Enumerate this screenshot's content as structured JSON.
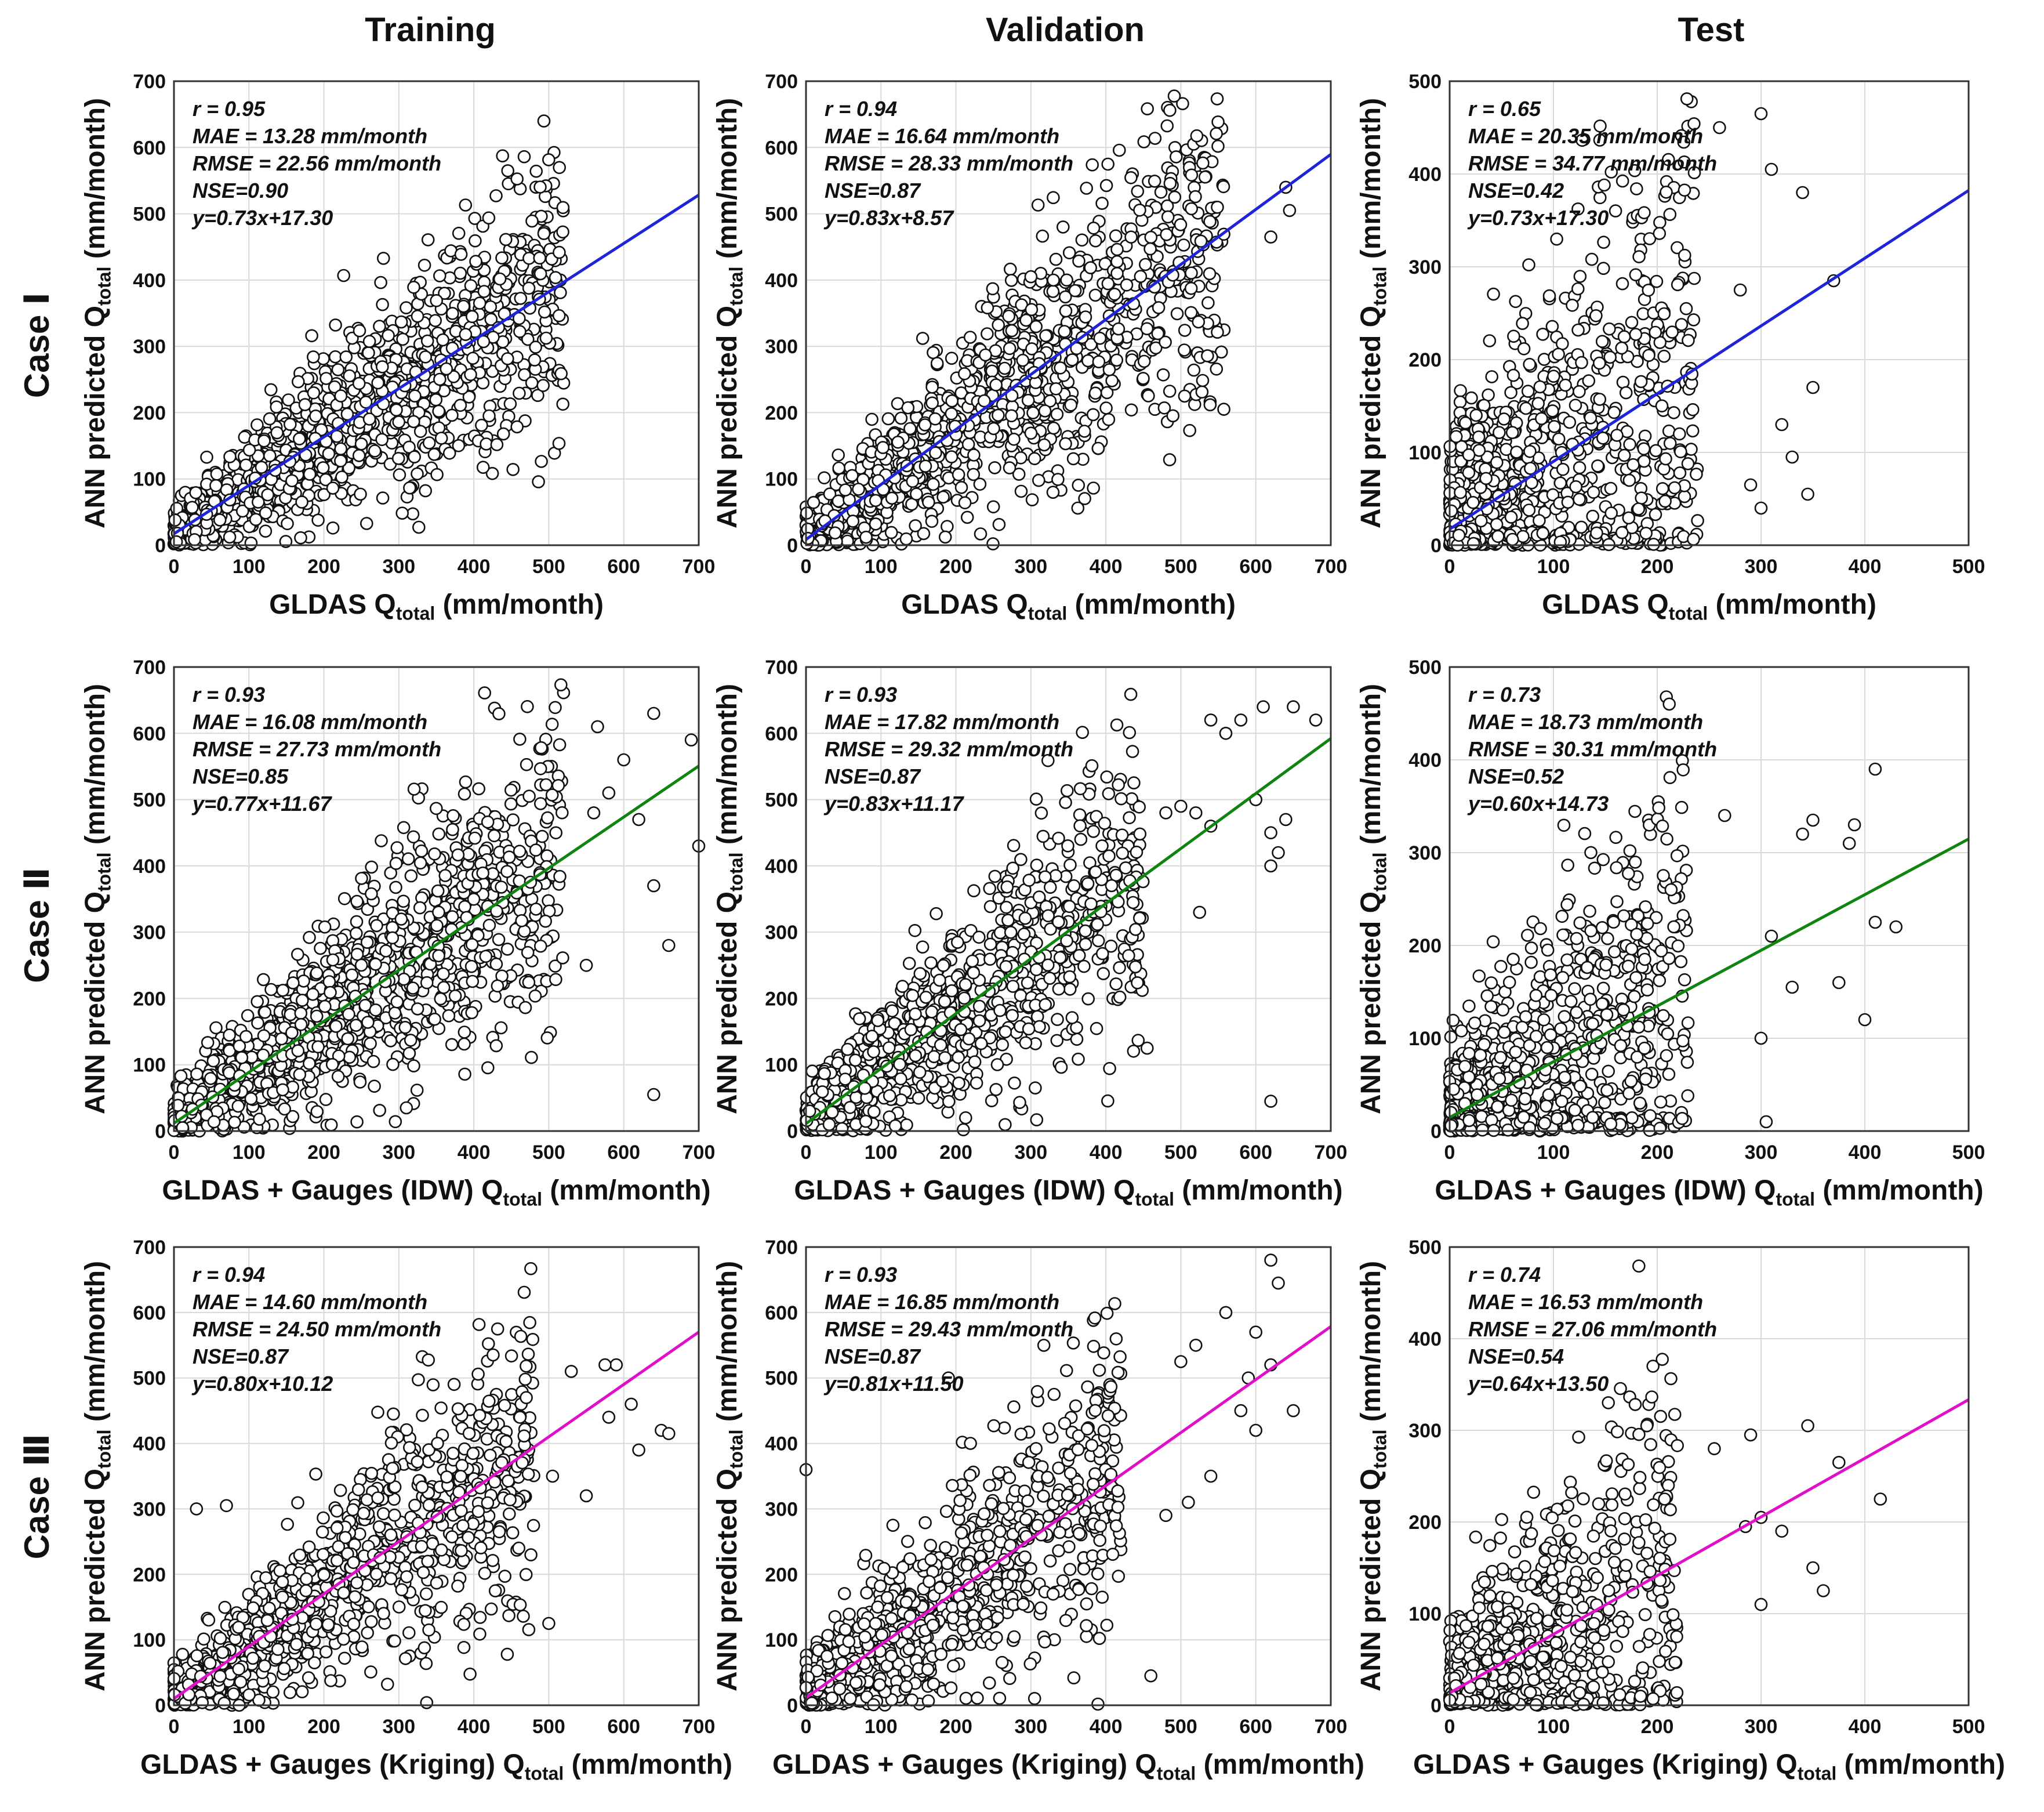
{
  "column_titles": [
    "Training",
    "Validation",
    "Test"
  ],
  "row_titles": [
    "Case Ⅰ",
    "Case Ⅱ",
    "Case Ⅲ"
  ],
  "axis_text": {
    "y_label_main": "ANN predicted Q",
    "sub": "total",
    "unit": " (mm/month)",
    "x_labels_main": [
      "GLDAS Q",
      "GLDAS + Gauges (IDW) Q",
      "GLDAS + Gauges (Kriging) Q"
    ]
  },
  "colors": {
    "case1": "#1f24d8",
    "case2": "#108410",
    "case3": "#e010c8",
    "marker_edge": "#111111",
    "grid": "#d9d9d9"
  },
  "chart_data": [
    {
      "type": "scatter",
      "case": "Case Ⅰ",
      "set": "Training",
      "xlim": [
        0,
        700
      ],
      "ylim": [
        0,
        700
      ],
      "xticks": [
        0,
        100,
        200,
        300,
        400,
        500,
        600,
        700
      ],
      "yticks": [
        0,
        100,
        200,
        300,
        400,
        500,
        600,
        700
      ],
      "grid": true,
      "stats": [
        "r = 0.95",
        "MAE = 13.28 mm/month",
        "RMSE = 22.56 mm/month",
        "NSE=0.90",
        "y=0.73x+17.30"
      ],
      "fit": {
        "slope": 0.73,
        "intercept": 17.3
      },
      "cloud": {
        "n": 1400,
        "xmax": 520,
        "spread": 0.18,
        "noise": 20,
        "skew": 1.25,
        "outliers": []
      }
    },
    {
      "type": "scatter",
      "case": "Case Ⅰ",
      "set": "Validation",
      "xlim": [
        0,
        700
      ],
      "ylim": [
        0,
        700
      ],
      "xticks": [
        0,
        100,
        200,
        300,
        400,
        500,
        600,
        700
      ],
      "yticks": [
        0,
        100,
        200,
        300,
        400,
        500,
        600,
        700
      ],
      "grid": true,
      "stats": [
        "r = 0.94",
        "MAE = 16.64 mm/month",
        "RMSE = 28.33 mm/month",
        "NSE=0.87",
        "y=0.83x+8.57"
      ],
      "fit": {
        "slope": 0.83,
        "intercept": 8.57
      },
      "cloud": {
        "n": 1200,
        "xmax": 560,
        "spread": 0.2,
        "noise": 25,
        "skew": 1.2,
        "outliers": [
          [
            640,
            540
          ],
          [
            645,
            505
          ],
          [
            620,
            465
          ],
          [
            505,
            225
          ],
          [
            415,
            410
          ],
          [
            330,
            400
          ],
          [
            300,
            405
          ]
        ]
      }
    },
    {
      "type": "scatter",
      "case": "Case Ⅰ",
      "set": "Test",
      "xlim": [
        0,
        500
      ],
      "ylim": [
        0,
        500
      ],
      "xticks": [
        0,
        100,
        200,
        300,
        400,
        500
      ],
      "yticks": [
        0,
        100,
        200,
        300,
        400,
        500
      ],
      "grid": true,
      "stats": [
        "r = 0.65",
        "MAE = 20.35 mm/month",
        "RMSE = 34.77 mm/month",
        "NSE=0.42",
        "y=0.73x+17.30"
      ],
      "fit": {
        "slope": 0.73,
        "intercept": 17.3
      },
      "cloud": {
        "n": 1000,
        "xmax": 240,
        "spread": 0.6,
        "noise": 45,
        "skew": 1.6,
        "outliers": [
          [
            300,
            465
          ],
          [
            260,
            450
          ],
          [
            340,
            380
          ],
          [
            310,
            405
          ],
          [
            350,
            170
          ],
          [
            320,
            130
          ],
          [
            330,
            95
          ],
          [
            370,
            285
          ],
          [
            300,
            40
          ],
          [
            345,
            55
          ],
          [
            290,
            65
          ],
          [
            280,
            275
          ]
        ]
      }
    },
    {
      "type": "scatter",
      "case": "Case Ⅱ",
      "set": "Training",
      "xlim": [
        0,
        700
      ],
      "ylim": [
        0,
        700
      ],
      "xticks": [
        0,
        100,
        200,
        300,
        400,
        500,
        600,
        700
      ],
      "yticks": [
        0,
        100,
        200,
        300,
        400,
        500,
        600,
        700
      ],
      "grid": true,
      "stats": [
        "r = 0.93",
        "MAE = 16.08 mm/month",
        "RMSE = 27.73 mm/month",
        "NSE=0.85",
        "y=0.77x+11.67"
      ],
      "fit": {
        "slope": 0.77,
        "intercept": 11.67
      },
      "cloud": {
        "n": 1300,
        "xmax": 520,
        "spread": 0.2,
        "noise": 22,
        "skew": 1.35,
        "outliers": [
          [
            640,
            630
          ],
          [
            565,
            610
          ],
          [
            600,
            560
          ],
          [
            690,
            590
          ],
          [
            700,
            430
          ],
          [
            640,
            370
          ],
          [
            660,
            280
          ],
          [
            640,
            55
          ],
          [
            310,
            35
          ],
          [
            550,
            250
          ],
          [
            560,
            480
          ],
          [
            580,
            510
          ],
          [
            620,
            470
          ]
        ]
      }
    },
    {
      "type": "scatter",
      "case": "Case Ⅱ",
      "set": "Validation",
      "xlim": [
        0,
        700
      ],
      "ylim": [
        0,
        700
      ],
      "xticks": [
        0,
        100,
        200,
        300,
        400,
        500,
        600,
        700
      ],
      "yticks": [
        0,
        100,
        200,
        300,
        400,
        500,
        600,
        700
      ],
      "grid": true,
      "stats": [
        "r = 0.93",
        "MAE = 17.82 mm/month",
        "RMSE = 29.32 mm/month",
        "NSE=0.87",
        "y=0.83x+11.17"
      ],
      "fit": {
        "slope": 0.83,
        "intercept": 11.17
      },
      "cloud": {
        "n": 1000,
        "xmax": 450,
        "spread": 0.22,
        "noise": 28,
        "skew": 1.35,
        "outliers": [
          [
            580,
            620
          ],
          [
            610,
            640
          ],
          [
            650,
            640
          ],
          [
            680,
            620
          ],
          [
            560,
            600
          ],
          [
            540,
            620
          ],
          [
            600,
            500
          ],
          [
            620,
            450
          ],
          [
            620,
            400
          ],
          [
            630,
            420
          ],
          [
            640,
            470
          ],
          [
            620,
            45
          ],
          [
            455,
            125
          ],
          [
            525,
            330
          ],
          [
            540,
            460
          ],
          [
            480,
            480
          ],
          [
            500,
            490
          ],
          [
            520,
            480
          ]
        ]
      }
    },
    {
      "type": "scatter",
      "case": "Case Ⅱ",
      "set": "Test",
      "xlim": [
        0,
        500
      ],
      "ylim": [
        0,
        500
      ],
      "xticks": [
        0,
        100,
        200,
        300,
        400,
        500
      ],
      "yticks": [
        0,
        100,
        200,
        300,
        400,
        500
      ],
      "grid": true,
      "stats": [
        "r = 0.73",
        "MAE = 18.73 mm/month",
        "RMSE = 30.31 mm/month",
        "NSE=0.52",
        "y=0.60x+14.73"
      ],
      "fit": {
        "slope": 0.6,
        "intercept": 14.73
      },
      "cloud": {
        "n": 900,
        "xmax": 230,
        "spread": 0.45,
        "noise": 35,
        "skew": 1.5,
        "outliers": [
          [
            410,
            390
          ],
          [
            350,
            335
          ],
          [
            390,
            330
          ],
          [
            385,
            310
          ],
          [
            340,
            320
          ],
          [
            265,
            340
          ],
          [
            410,
            225
          ],
          [
            430,
            220
          ],
          [
            400,
            120
          ],
          [
            375,
            160
          ],
          [
            305,
            10
          ],
          [
            300,
            100
          ],
          [
            310,
            210
          ],
          [
            330,
            155
          ]
        ]
      }
    },
    {
      "type": "scatter",
      "case": "Case Ⅲ",
      "set": "Training",
      "xlim": [
        0,
        700
      ],
      "ylim": [
        0,
        700
      ],
      "xticks": [
        0,
        100,
        200,
        300,
        400,
        500,
        600,
        700
      ],
      "yticks": [
        0,
        100,
        200,
        300,
        400,
        500,
        600,
        700
      ],
      "grid": true,
      "stats": [
        "r = 0.94",
        "MAE = 14.60 mm/month",
        "RMSE = 24.50 mm/month",
        "NSE=0.87",
        "y=0.80x+10.12"
      ],
      "fit": {
        "slope": 0.8,
        "intercept": 10.12
      },
      "cloud": {
        "n": 1100,
        "xmax": 480,
        "spread": 0.2,
        "noise": 22,
        "skew": 1.4,
        "outliers": [
          [
            590,
            520
          ],
          [
            575,
            520
          ],
          [
            580,
            440
          ],
          [
            610,
            460
          ],
          [
            620,
            390
          ],
          [
            650,
            420
          ],
          [
            660,
            415
          ],
          [
            550,
            320
          ],
          [
            500,
            125
          ],
          [
            340,
            115
          ],
          [
            70,
            305
          ],
          [
            30,
            300
          ],
          [
            530,
            510
          ],
          [
            505,
            350
          ],
          [
            460,
            240
          ],
          [
            470,
            470
          ]
        ]
      }
    },
    {
      "type": "scatter",
      "case": "Case Ⅲ",
      "set": "Validation",
      "xlim": [
        0,
        700
      ],
      "ylim": [
        0,
        700
      ],
      "xticks": [
        0,
        100,
        200,
        300,
        400,
        500,
        600,
        700
      ],
      "yticks": [
        0,
        100,
        200,
        300,
        400,
        500,
        600,
        700
      ],
      "grid": true,
      "stats": [
        "r = 0.93",
        "MAE = 16.85 mm/month",
        "RMSE = 29.43 mm/month",
        "NSE=0.87",
        "y=0.81x+11.50"
      ],
      "fit": {
        "slope": 0.81,
        "intercept": 11.5
      },
      "cloud": {
        "n": 900,
        "xmax": 420,
        "spread": 0.22,
        "noise": 30,
        "skew": 1.4,
        "outliers": [
          [
            620,
            680
          ],
          [
            630,
            645
          ],
          [
            560,
            600
          ],
          [
            600,
            570
          ],
          [
            620,
            520
          ],
          [
            590,
            500
          ],
          [
            650,
            450
          ],
          [
            600,
            420
          ],
          [
            580,
            450
          ],
          [
            460,
            45
          ],
          [
            0,
            360
          ],
          [
            190,
            500
          ],
          [
            510,
            310
          ],
          [
            480,
            290
          ],
          [
            540,
            350
          ],
          [
            520,
            550
          ],
          [
            500,
            525
          ]
        ]
      }
    },
    {
      "type": "scatter",
      "case": "Case Ⅲ",
      "set": "Test",
      "xlim": [
        0,
        500
      ],
      "ylim": [
        0,
        500
      ],
      "xticks": [
        0,
        100,
        200,
        300,
        400,
        500
      ],
      "yticks": [
        0,
        100,
        200,
        300,
        400,
        500
      ],
      "grid": true,
      "stats": [
        "r = 0.74",
        "MAE = 16.53 mm/month",
        "RMSE = 27.06 mm/month",
        "NSE=0.54",
        "y=0.64x+13.50"
      ],
      "fit": {
        "slope": 0.64,
        "intercept": 13.5
      },
      "cloud": {
        "n": 750,
        "xmax": 220,
        "spread": 0.45,
        "noise": 35,
        "skew": 1.5,
        "outliers": [
          [
            415,
            225
          ],
          [
            375,
            265
          ],
          [
            360,
            125
          ],
          [
            350,
            150
          ],
          [
            345,
            305
          ],
          [
            320,
            190
          ],
          [
            300,
            205
          ],
          [
            300,
            110
          ],
          [
            290,
            295
          ],
          [
            285,
            195
          ],
          [
            190,
            305
          ],
          [
            255,
            280
          ]
        ]
      }
    }
  ]
}
